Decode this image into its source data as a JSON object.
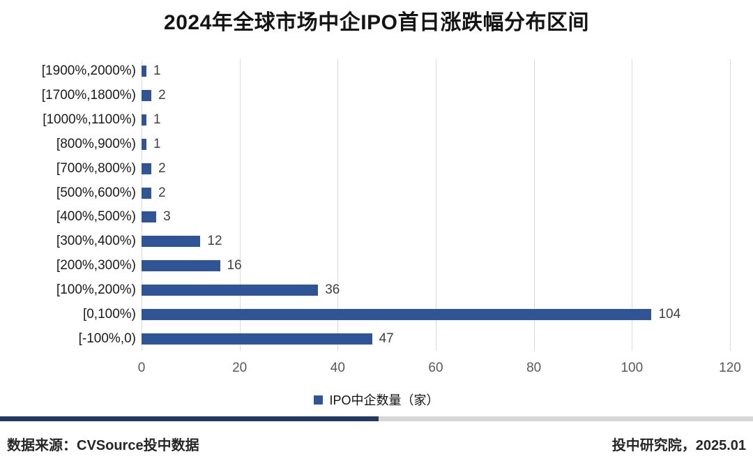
{
  "title": "2024年全球市场中企IPO首日涨跌幅分布区间",
  "chart_data": {
    "type": "bar",
    "orientation": "horizontal",
    "title": "2024年全球市场中企IPO首日涨跌幅分布区间",
    "categories": [
      "[1900%,2000%)",
      "[1700%,1800%)",
      "[1000%,1100%)",
      "[800%,900%)",
      "[700%,800%)",
      "[500%,600%)",
      "[400%,500%)",
      "[300%,400%)",
      "[200%,300%)",
      "[100%,200%)",
      "[0,100%)",
      "[-100%,0)"
    ],
    "values": [
      1,
      2,
      1,
      1,
      2,
      2,
      3,
      12,
      16,
      36,
      104,
      47
    ],
    "series_name": "IPO中企数量（家）",
    "xlabel": "",
    "ylabel": "",
    "xlim": [
      0,
      120
    ],
    "x_ticks": [
      0,
      20,
      40,
      60,
      80,
      100,
      120
    ],
    "grid": "vertical-only",
    "legend_position": "bottom-center",
    "bar_color": "#2F5597"
  },
  "legend": {
    "label": "IPO中企数量（家）",
    "marker_color": "#2F5597"
  },
  "footer": {
    "source": "数据来源：CVSource投中数据",
    "publisher": "投中研究院，2025.01"
  },
  "colors": {
    "bar": "#2F5597",
    "grid": "#D9D9D9",
    "tick_label": "#595959",
    "value_label": "#404040",
    "divider_left": "#1F3864",
    "divider_right": "#D6D6D6"
  }
}
